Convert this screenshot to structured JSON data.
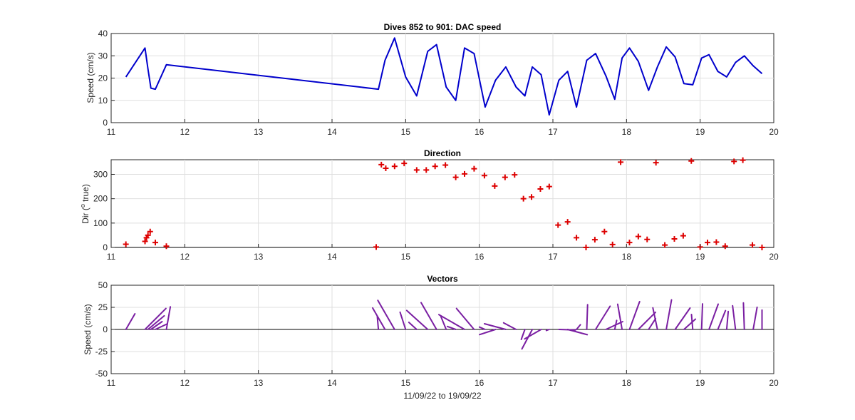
{
  "chart_data": [
    {
      "type": "line",
      "title": "Dives 852 to 901: DAC speed",
      "ylabel": "Speed (cm/s)",
      "xlabel": "",
      "xlim": [
        11,
        20
      ],
      "ylim": [
        0,
        40
      ],
      "xticks": [
        11,
        12,
        13,
        14,
        15,
        16,
        17,
        18,
        19,
        20
      ],
      "yticks": [
        0,
        10,
        20,
        30,
        40
      ],
      "grid": true,
      "color": "#0000cc",
      "x": [
        11.2,
        11.46,
        11.5,
        11.54,
        11.6,
        11.75,
        14.63,
        14.72,
        14.85,
        15.0,
        15.15,
        15.3,
        15.42,
        15.55,
        15.68,
        15.8,
        15.93,
        16.08,
        16.22,
        16.36,
        16.5,
        16.62,
        16.72,
        16.84,
        16.95,
        17.08,
        17.2,
        17.32,
        17.46,
        17.58,
        17.72,
        17.84,
        17.94,
        18.04,
        18.16,
        18.3,
        18.42,
        18.54,
        18.66,
        18.78,
        18.9,
        19.02,
        19.12,
        19.24,
        19.36,
        19.48,
        19.6,
        19.72,
        19.84
      ],
      "y": [
        20.5,
        33.5,
        24,
        15.5,
        15,
        26,
        15,
        28,
        38,
        20.5,
        12,
        32,
        35,
        16,
        10,
        33.5,
        31,
        7,
        19,
        25,
        16,
        12,
        25,
        21.5,
        3.5,
        19,
        23,
        7,
        28,
        31,
        21,
        10.5,
        29,
        33.5,
        27.5,
        14.5,
        25,
        34,
        29.5,
        17.5,
        17,
        29,
        30.5,
        23,
        20.5,
        27,
        30,
        25.5,
        22
      ]
    },
    {
      "type": "scatter",
      "title": "Direction",
      "ylabel": "Dir (o true)",
      "xlabel": "",
      "xlim": [
        11,
        20
      ],
      "ylim": [
        0,
        360
      ],
      "xticks": [
        11,
        12,
        13,
        14,
        15,
        16,
        17,
        18,
        19,
        20
      ],
      "yticks": [
        0,
        100,
        200,
        300
      ],
      "grid": true,
      "marker": "+",
      "color": "#dd0000",
      "x": [
        11.2,
        11.46,
        11.48,
        11.5,
        11.53,
        11.6,
        11.75,
        14.6,
        14.67,
        14.73,
        14.85,
        14.98,
        15.15,
        15.28,
        15.4,
        15.54,
        15.68,
        15.8,
        15.93,
        16.07,
        16.21,
        16.35,
        16.48,
        16.6,
        16.71,
        16.83,
        16.95,
        17.07,
        17.2,
        17.32,
        17.45,
        17.57,
        17.7,
        17.81,
        17.92,
        18.04,
        18.16,
        18.28,
        18.4,
        18.52,
        18.65,
        18.77,
        18.88,
        19.0,
        19.1,
        19.22,
        19.34,
        19.46,
        19.58,
        19.71,
        19.84
      ],
      "y": [
        13,
        25,
        40,
        50,
        65,
        20,
        5,
        2,
        340,
        325,
        333,
        345,
        318,
        318,
        333,
        338,
        288,
        302,
        323,
        295,
        252,
        288,
        298,
        200,
        207,
        240,
        250,
        92,
        105,
        40,
        0,
        32,
        65,
        12,
        350,
        20,
        45,
        33,
        348,
        10,
        35,
        48,
        355,
        2,
        20,
        22,
        5,
        353,
        358,
        10,
        0
      ]
    },
    {
      "type": "vector",
      "title": "Vectors",
      "ylabel": "Speed (cm/s)",
      "xlabel": "11/09/22 to 19/09/22",
      "xlim": [
        11,
        20
      ],
      "ylim": [
        -50,
        50
      ],
      "xticks": [
        11,
        12,
        13,
        14,
        15,
        16,
        17,
        18,
        19,
        20
      ],
      "yticks": [
        -50,
        -25,
        0,
        25,
        50
      ],
      "grid": true,
      "zero_line": true,
      "color": "#7a1fa2",
      "time_span_units": 1,
      "time_span_days": 8.5,
      "origins_x": [
        11.2,
        11.46,
        11.5,
        11.54,
        11.6,
        11.75,
        14.63,
        14.72,
        14.85,
        15.0,
        15.15,
        15.3,
        15.42,
        15.55,
        15.68,
        15.8,
        15.93,
        16.08,
        16.22,
        16.36,
        16.5,
        16.62,
        16.72,
        16.84,
        16.95,
        17.08,
        17.2,
        17.32,
        17.46,
        17.58,
        17.72,
        17.84,
        17.94,
        18.04,
        18.16,
        18.3,
        18.42,
        18.54,
        18.66,
        18.78,
        18.9,
        19.02,
        19.12,
        19.24,
        19.36,
        19.48,
        19.6,
        19.72,
        19.84
      ],
      "directions_deg": [
        30,
        45,
        50,
        55,
        65,
        10,
        355,
        330,
        330,
        342,
        312,
        312,
        330,
        338,
        290,
        300,
        320,
        292,
        252,
        285,
        298,
        200,
        208,
        240,
        250,
        92,
        105,
        40,
        2,
        32,
        65,
        12,
        350,
        20,
        45,
        33,
        348,
        10,
        35,
        48,
        355,
        2,
        20,
        22,
        5,
        353,
        358,
        10,
        0
      ],
      "speeds": [
        20.5,
        33.5,
        24,
        15.5,
        15,
        26,
        15,
        28,
        38,
        20.5,
        12,
        32,
        35,
        16,
        10,
        33.5,
        31,
        7,
        19,
        25,
        16,
        12,
        25,
        21.5,
        3.5,
        19,
        23,
        7,
        28,
        31,
        21,
        10.5,
        29,
        33.5,
        27.5,
        14.5,
        25,
        34,
        29.5,
        17.5,
        17,
        29,
        30.5,
        23,
        20.5,
        27,
        30,
        25.5,
        22
      ]
    }
  ]
}
